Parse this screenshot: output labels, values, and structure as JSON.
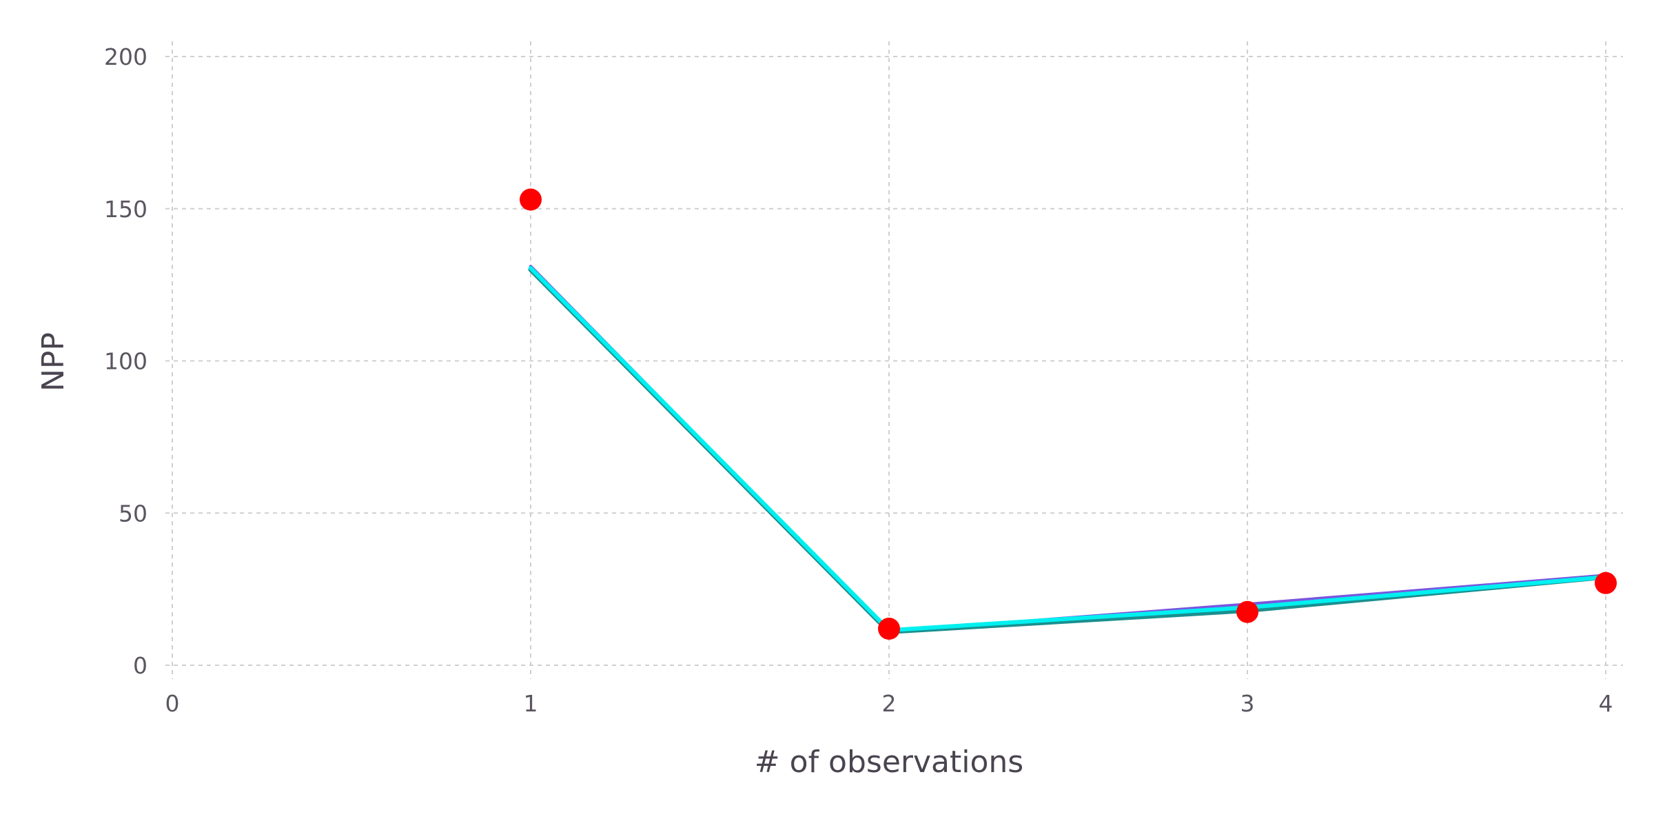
{
  "chart_data": {
    "type": "line",
    "title": "",
    "xlabel": "# of observations",
    "ylabel": "NPP",
    "xlim": [
      0,
      4
    ],
    "ylim": [
      0,
      200
    ],
    "x_ticks": [
      0,
      1,
      2,
      3,
      4
    ],
    "y_ticks": [
      0,
      50,
      100,
      150,
      200
    ],
    "grid": true,
    "legend": "none",
    "series": [
      {
        "kind": "line",
        "color": "#7a55e0",
        "x": [
          1,
          2,
          3,
          4
        ],
        "y": [
          131,
          11,
          20,
          29.5
        ]
      },
      {
        "kind": "line",
        "color": "#1a8f8f",
        "x": [
          1,
          2,
          3,
          4
        ],
        "y": [
          130,
          11,
          18,
          29
        ]
      },
      {
        "kind": "line",
        "color": "#00f0f0",
        "x": [
          1,
          2,
          3,
          4
        ],
        "y": [
          130.5,
          11.5,
          19,
          29
        ]
      },
      {
        "kind": "scatter",
        "color": "#ff0000",
        "x": [
          1,
          2,
          3,
          4
        ],
        "y": [
          153,
          12,
          17.5,
          27
        ]
      }
    ]
  }
}
